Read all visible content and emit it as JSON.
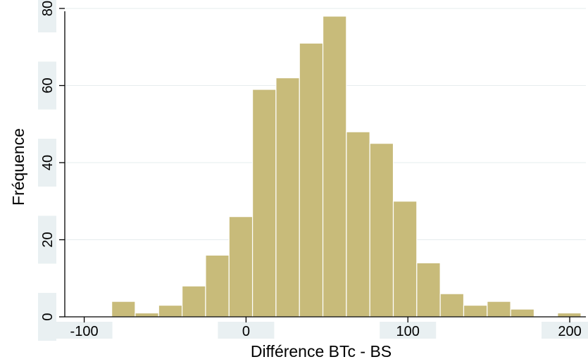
{
  "chart_data": {
    "type": "bar",
    "subtype": "histogram",
    "title": "",
    "xlabel": "Différence BTc - BS",
    "ylabel": "Fréquence",
    "xlim": [
      -112,
      210
    ],
    "ylim": [
      0,
      80
    ],
    "x_ticks": [
      -100,
      0,
      100,
      200
    ],
    "x_tick_labels": [
      "-100",
      "0",
      "100",
      "200"
    ],
    "y_ticks": [
      0,
      20,
      40,
      60,
      80
    ],
    "y_tick_labels": [
      "0",
      "20",
      "40",
      "60",
      "80"
    ],
    "bin_width": 14.5,
    "bin_starts": [
      -83.0,
      -68.5,
      -54.0,
      -39.5,
      -25.0,
      -10.5,
      4.0,
      18.5,
      33.0,
      47.5,
      62.0,
      76.5,
      91.0,
      105.5,
      120.0,
      134.5,
      149.0,
      163.5,
      178.0,
      192.5
    ],
    "values": [
      4,
      1,
      3,
      8,
      16,
      26,
      59,
      62,
      71,
      78,
      48,
      45,
      30,
      14,
      6,
      3,
      4,
      2,
      0,
      1
    ],
    "grid": true,
    "legend": "none",
    "colors": {
      "bar_fill": "#c8bb7a",
      "bar_stroke": "#ffffff",
      "plot_background": "#ffffff",
      "label_band": "#e9f0f2",
      "grid": "#e6ecee",
      "axis": "#000000"
    }
  }
}
